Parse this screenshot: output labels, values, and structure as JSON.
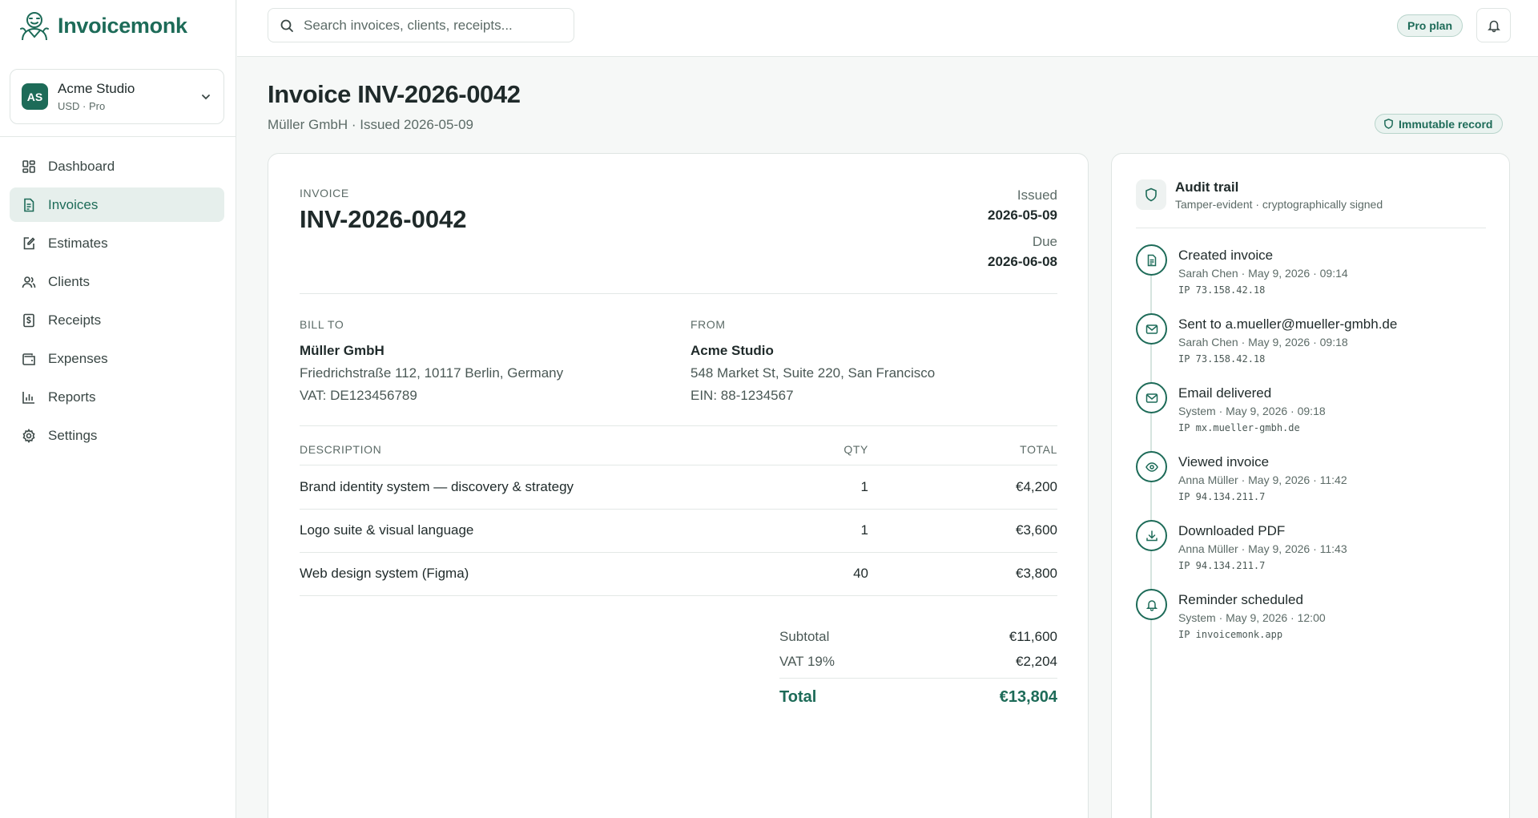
{
  "brand": {
    "name": "Invoicemonk",
    "logo_icon": "monk-logo-icon"
  },
  "workspace": {
    "initials": "AS",
    "name": "Acme Studio",
    "sub": "USD · Pro"
  },
  "nav": {
    "items": [
      {
        "label": "Dashboard",
        "icon": "dashboard-icon",
        "active": false
      },
      {
        "label": "Invoices",
        "icon": "invoice-icon",
        "active": true
      },
      {
        "label": "Estimates",
        "icon": "estimate-icon",
        "active": false
      },
      {
        "label": "Clients",
        "icon": "clients-icon",
        "active": false
      },
      {
        "label": "Receipts",
        "icon": "receipt-icon",
        "active": false
      },
      {
        "label": "Expenses",
        "icon": "wallet-icon",
        "active": false
      },
      {
        "label": "Reports",
        "icon": "chart-icon",
        "active": false
      },
      {
        "label": "Settings",
        "icon": "gear-icon",
        "active": false
      }
    ]
  },
  "topbar": {
    "search_placeholder": "Search invoices, clients, receipts...",
    "plan_badge": "Pro plan"
  },
  "page": {
    "title": "Invoice INV-2026-0042",
    "subtitle": "Müller GmbH · Issued 2026-05-09",
    "immutable_badge": "Immutable record"
  },
  "invoice": {
    "label": "INVOICE",
    "number": "INV-2026-0042",
    "issued_label": "Issued",
    "issued": "2026-05-09",
    "due_label": "Due",
    "due": "2026-06-08",
    "bill_to": {
      "label": "BILL TO",
      "name": "Müller GmbH",
      "address": "Friedrichstraße 112, 10117 Berlin, Germany",
      "tax": "VAT: DE123456789"
    },
    "from": {
      "label": "FROM",
      "name": "Acme Studio",
      "address": "548 Market St, Suite 220, San Francisco",
      "tax": "EIN: 88-1234567"
    },
    "columns": {
      "description": "DESCRIPTION",
      "qty": "QTY",
      "total": "TOTAL"
    },
    "lines": [
      {
        "description": "Brand identity system — discovery & strategy",
        "qty": "1",
        "total": "€4,200"
      },
      {
        "description": "Logo suite & visual language",
        "qty": "1",
        "total": "€3,600"
      },
      {
        "description": "Web design system (Figma)",
        "qty": "40",
        "total": "€3,800"
      }
    ],
    "subtotal_label": "Subtotal",
    "subtotal": "€11,600",
    "vat_label": "VAT 19%",
    "vat": "€2,204",
    "total_label": "Total",
    "total": "€13,804"
  },
  "audit": {
    "title": "Audit trail",
    "subtitle": "Tamper-evident · cryptographically signed",
    "events": [
      {
        "title": "Created invoice",
        "meta": "Sarah Chen · May 9, 2026 · 09:14",
        "ip": "IP 73.158.42.18",
        "icon": "document-icon"
      },
      {
        "title": "Sent to a.mueller@mueller-gmbh.de",
        "meta": "Sarah Chen · May 9, 2026 · 09:18",
        "ip": "IP 73.158.42.18",
        "icon": "mail-icon"
      },
      {
        "title": "Email delivered",
        "meta": "System · May 9, 2026 · 09:18",
        "ip": "IP mx.mueller-gmbh.de",
        "icon": "mail-icon"
      },
      {
        "title": "Viewed invoice",
        "meta": "Anna Müller · May 9, 2026 · 11:42",
        "ip": "IP 94.134.211.7",
        "icon": "eye-icon"
      },
      {
        "title": "Downloaded PDF",
        "meta": "Anna Müller · May 9, 2026 · 11:43",
        "ip": "IP 94.134.211.7",
        "icon": "download-icon"
      },
      {
        "title": "Reminder scheduled",
        "meta": "System · May 9, 2026 · 12:00",
        "ip": "IP invoicemonk.app",
        "icon": "bell-icon"
      }
    ]
  },
  "colors": {
    "accent": "#1d6b58",
    "accent_soft": "#e6efec",
    "border": "#dfe5e3",
    "background": "#f6f8f7"
  }
}
